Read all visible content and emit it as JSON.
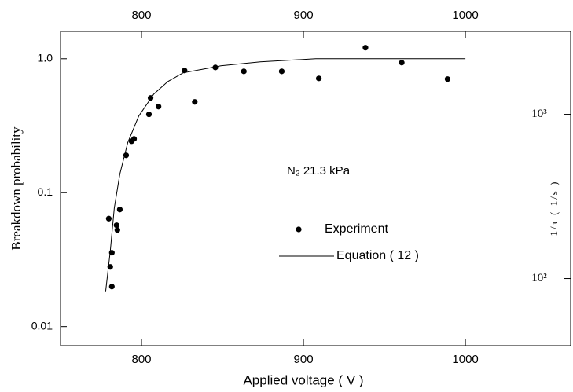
{
  "chart_data": {
    "type": "scatter",
    "xlabel": "Applied voltage ( V )",
    "ylabel": "Breakdown probability",
    "y2label": "1/τ ( 1/s )",
    "annotation": "N₂ 21.3 kPa",
    "xlim": [
      750,
      1065
    ],
    "xticks": [
      800,
      900,
      1000
    ],
    "ylim": [
      0.0072,
      1.6
    ],
    "yscale": "log",
    "yticks": [
      0.01,
      0.1,
      {
        "value": 1,
        "label": "1.0"
      }
    ],
    "y2lim": [
      39,
      3200
    ],
    "y2scale": "log",
    "y2ticks": [
      {
        "value": 100,
        "label": "10²"
      },
      {
        "value": 1000,
        "label": "10³"
      }
    ],
    "legend": "center",
    "series": [
      {
        "name": "Experiment",
        "type": "scatter",
        "color": "#000000",
        "x": [
          779.8,
          780.7,
          781.7,
          781.7,
          784.6,
          785.1,
          786.6,
          790.5,
          793.9,
          795.4,
          804.6,
          805.6,
          810.5,
          826.6,
          832.9,
          845.6,
          863.2,
          886.6,
          909.5,
          938.3,
          960.7,
          989.0
        ],
        "values": [
          0.064,
          0.0279,
          0.0356,
          0.0199,
          0.0571,
          0.0526,
          0.0748,
          0.19,
          0.242,
          0.252,
          0.384,
          0.509,
          0.439,
          0.817,
          0.476,
          0.861,
          0.805,
          0.805,
          0.713,
          1.21,
          0.935,
          0.705
        ]
      },
      {
        "name": "Equation ( 12 )",
        "type": "line",
        "color": "#000000",
        "x": [
          777.8,
          780.7,
          783.2,
          786.6,
          791.5,
          798.3,
          807.6,
          816.3,
          825.6,
          849.0,
          873.4,
          907.6,
          1000
        ],
        "values": [
          0.0181,
          0.0366,
          0.0768,
          0.137,
          0.236,
          0.373,
          0.545,
          0.676,
          0.784,
          0.885,
          0.947,
          1.0,
          1.0
        ]
      }
    ]
  }
}
